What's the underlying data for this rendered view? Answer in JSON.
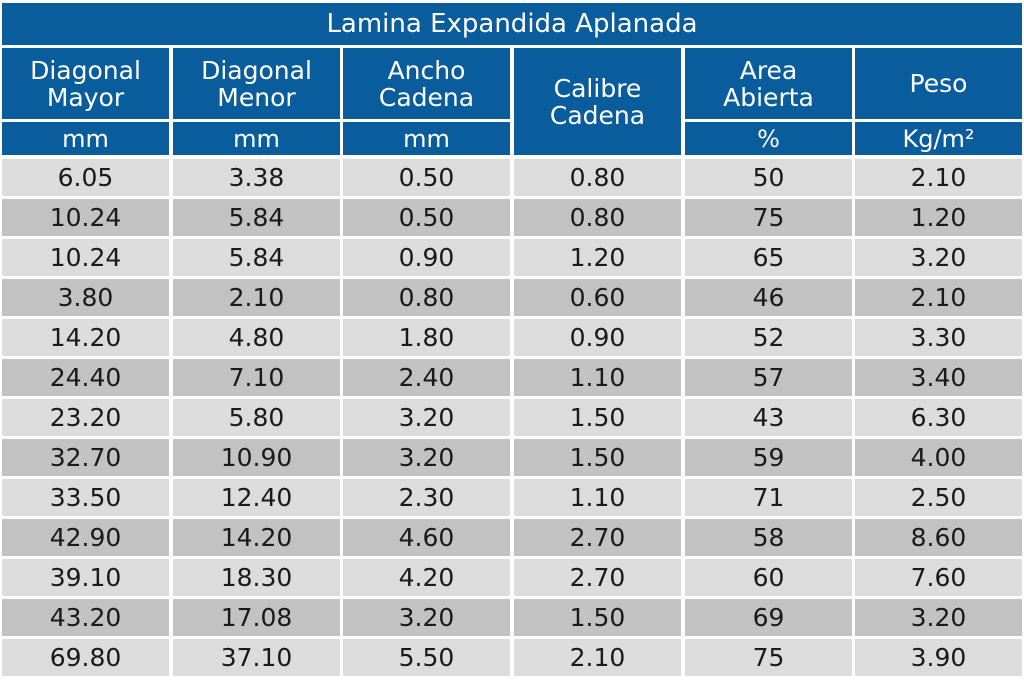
{
  "table": {
    "title": "Lamina Expandida Aplanada",
    "headers": [
      {
        "lines": [
          "Diagonal",
          "Mayor"
        ],
        "unit": "mm"
      },
      {
        "lines": [
          "Diagonal",
          "Menor"
        ],
        "unit": "mm"
      },
      {
        "lines": [
          "Ancho",
          "Cadena"
        ],
        "unit": "mm"
      },
      {
        "lines": [
          "Calibre",
          "Cadena"
        ],
        "unit": ""
      },
      {
        "lines": [
          "Area",
          "Abierta"
        ],
        "unit": "%"
      },
      {
        "lines": [
          "Peso"
        ],
        "unit": "Kg/m²"
      }
    ],
    "rows": [
      [
        "6.05",
        "3.38",
        "0.50",
        "0.80",
        "50",
        "2.10"
      ],
      [
        "10.24",
        "5.84",
        "0.50",
        "0.80",
        "75",
        "1.20"
      ],
      [
        "10.24",
        "5.84",
        "0.90",
        "1.20",
        "65",
        "3.20"
      ],
      [
        "3.80",
        "2.10",
        "0.80",
        "0.60",
        "46",
        "2.10"
      ],
      [
        "14.20",
        "4.80",
        "1.80",
        "0.90",
        "52",
        "3.30"
      ],
      [
        "24.40",
        "7.10",
        "2.40",
        "1.10",
        "57",
        "3.40"
      ],
      [
        "23.20",
        "5.80",
        "3.20",
        "1.50",
        "43",
        "6.30"
      ],
      [
        "32.70",
        "10.90",
        "3.20",
        "1.50",
        "59",
        "4.00"
      ],
      [
        "33.50",
        "12.40",
        "2.30",
        "1.10",
        "71",
        "2.50"
      ],
      [
        "42.90",
        "14.20",
        "4.60",
        "2.70",
        "58",
        "8.60"
      ],
      [
        "39.10",
        "18.30",
        "4.20",
        "2.70",
        "60",
        "7.60"
      ],
      [
        "43.20",
        "17.08",
        "3.20",
        "1.50",
        "69",
        "3.20"
      ],
      [
        "69.80",
        "37.10",
        "5.50",
        "2.10",
        "75",
        "3.90"
      ]
    ]
  },
  "colors": {
    "header_bg": "#0a5d9c",
    "row_light": "#dcdcdc",
    "row_dark": "#c2c2c2"
  }
}
